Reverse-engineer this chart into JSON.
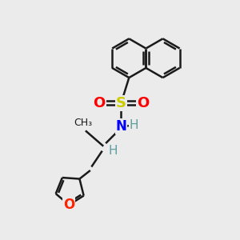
{
  "bg_color": "#ebebeb",
  "bond_color": "#1a1a1a",
  "S_color": "#cccc00",
  "O_color": "#ff0000",
  "N_color": "#0000ff",
  "H_color": "#5f9ea0",
  "furan_O_color": "#ff2200",
  "line_width": 1.8,
  "fig_size": [
    3.0,
    3.0
  ],
  "dpi": 100,
  "xlim": [
    0,
    10
  ],
  "ylim": [
    0,
    10
  ]
}
